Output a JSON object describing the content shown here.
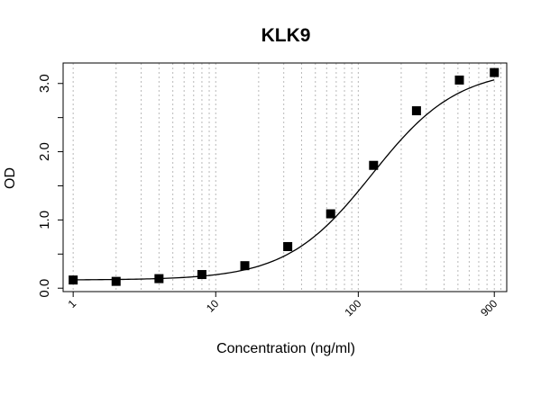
{
  "chart_data": {
    "type": "scatter",
    "title": "KLK9",
    "xlabel": "Concentration (ng/ml)",
    "ylabel": "OD",
    "x_scale": "log",
    "xlim": [
      0.85,
      1100
    ],
    "ylim": [
      -0.05,
      3.3
    ],
    "x_tick_values": [
      1,
      10,
      100,
      900
    ],
    "x_tick_labels": [
      "1",
      "10",
      "100",
      "900"
    ],
    "y_tick_values": [
      0,
      1,
      2,
      3
    ],
    "y_tick_labels": [
      "0.0",
      "1.0",
      "2.0",
      "3.0"
    ],
    "grid": "vertical dotted (log minor)",
    "legend": "none",
    "marker": "filled-square",
    "marker_color": "#000000",
    "curve": "4PL fit",
    "x": [
      1,
      2,
      4,
      8,
      16,
      32,
      64,
      128,
      256,
      512,
      900
    ],
    "y": [
      0.12,
      0.1,
      0.14,
      0.2,
      0.33,
      0.61,
      1.09,
      1.8,
      2.6,
      3.05,
      3.16
    ]
  }
}
